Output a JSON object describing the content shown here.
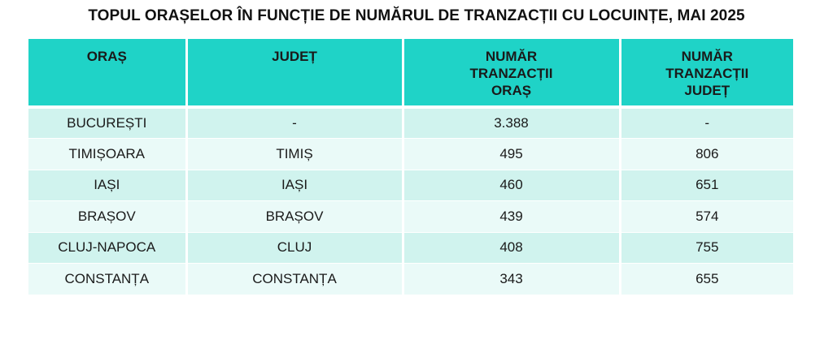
{
  "title": "TOPUL ORAȘELOR ÎN FUNCȚIE DE NUMĂRUL DE TRANZACȚII CU LOCUINȚE, MAI 2025",
  "headers": {
    "oras": "ORAȘ",
    "judet": "JUDEȚ",
    "tranzactii_oras": "NUMĂR TRANZACȚII ORAȘ",
    "tranzactii_judet": "NUMĂR TRANZACȚII JUDEȚ"
  },
  "rows": [
    {
      "oras": "BUCUREȘTI",
      "judet": "-",
      "tranzactii_oras": "3.388",
      "tranzactii_judet": "-"
    },
    {
      "oras": "TIMIȘOARA",
      "judet": "TIMIȘ",
      "tranzactii_oras": "495",
      "tranzactii_judet": "806"
    },
    {
      "oras": "IAȘI",
      "judet": "IAȘI",
      "tranzactii_oras": "460",
      "tranzactii_judet": "651"
    },
    {
      "oras": "BRAȘOV",
      "judet": "BRAȘOV",
      "tranzactii_oras": "439",
      "tranzactii_judet": "574"
    },
    {
      "oras": "CLUJ-NAPOCA",
      "judet": "CLUJ",
      "tranzactii_oras": "408",
      "tranzactii_judet": "755"
    },
    {
      "oras": "CONSTANȚA",
      "judet": "CONSTANȚA",
      "tranzactii_oras": "343",
      "tranzactii_judet": "655"
    }
  ],
  "colors": {
    "header_bg": "#1fd3c7",
    "row_odd_bg": "#d0f3ee",
    "row_even_bg": "#eafaf8"
  }
}
